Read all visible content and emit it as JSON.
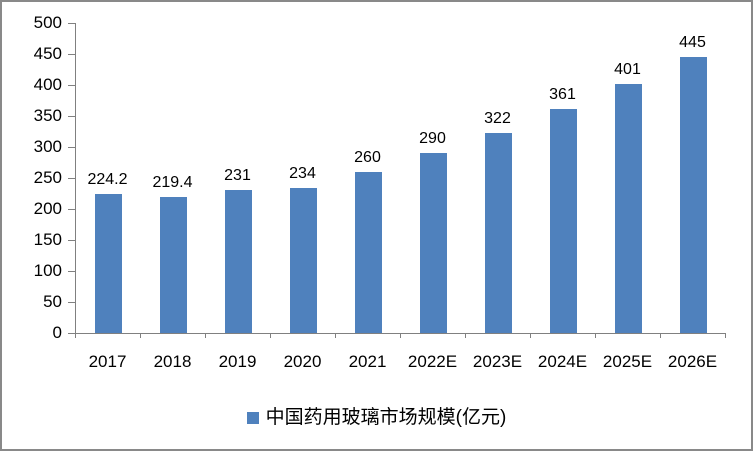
{
  "chart_data": {
    "type": "bar",
    "title": "",
    "xlabel": "",
    "ylabel": "",
    "categories": [
      "2017",
      "2018",
      "2019",
      "2020",
      "2021",
      "2022E",
      "2023E",
      "2024E",
      "2025E",
      "2026E"
    ],
    "values": [
      224.2,
      219.4,
      231,
      234,
      260,
      290,
      322,
      361,
      401,
      445
    ],
    "value_labels": [
      "224.2",
      "219.4",
      "231",
      "234",
      "260",
      "290",
      "322",
      "361",
      "401",
      "445"
    ],
    "ylim": [
      0,
      500
    ],
    "ytick_step": 50,
    "yticks": [
      0,
      50,
      100,
      150,
      200,
      250,
      300,
      350,
      400,
      450,
      500
    ],
    "grid": false,
    "legend_label": "中国药用玻璃市场规模(亿元)",
    "legend_position": "bottom",
    "colors": {
      "bar": "#4F81BD",
      "axis": "#808080",
      "text": "#000000",
      "frame_border": "#898989",
      "background": "#FFFFFF"
    }
  }
}
